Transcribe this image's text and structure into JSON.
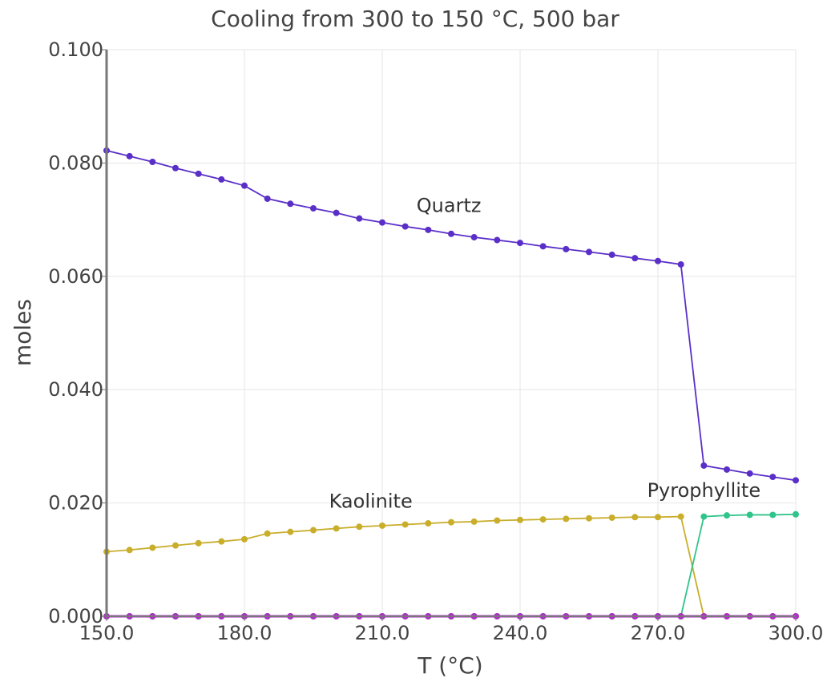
{
  "chart_data": {
    "type": "line",
    "title": "Cooling from 300 to 150 °C, 500 bar",
    "xlabel": "T (°C)",
    "ylabel": "moles",
    "xlim": [
      150,
      300
    ],
    "ylim": [
      0,
      0.1
    ],
    "xticks": [
      150,
      180,
      210,
      240,
      270,
      300
    ],
    "xtick_labels": [
      "150.0",
      "180.0",
      "210.0",
      "240.0",
      "270.0",
      "300.0"
    ],
    "yticks": [
      0,
      0.02,
      0.04,
      0.06,
      0.08,
      0.1
    ],
    "ytick_labels": [
      "0.000",
      "0.020",
      "0.040",
      "0.060",
      "0.080",
      "0.100"
    ],
    "grid": true,
    "x": [
      150,
      155,
      160,
      165,
      170,
      175,
      180,
      185,
      190,
      195,
      200,
      205,
      210,
      215,
      220,
      225,
      230,
      235,
      240,
      245,
      250,
      255,
      260,
      265,
      270,
      275,
      280,
      285,
      290,
      295,
      300
    ],
    "series": [
      {
        "color": "#5a2fc8",
        "values": [
          0.0822,
          0.0812,
          0.0802,
          0.0791,
          0.0781,
          0.0771,
          0.076,
          0.0737,
          0.0728,
          0.072,
          0.0712,
          0.0702,
          0.0695,
          0.0688,
          0.0682,
          0.0675,
          0.0669,
          0.0664,
          0.0659,
          0.0653,
          0.0648,
          0.0643,
          0.0638,
          0.0632,
          0.0627,
          0.0621,
          0.0266,
          0.0259,
          0.0252,
          0.0246,
          0.024
        ]
      },
      {
        "color": "#c9ae2c",
        "values": [
          0.0114,
          0.0117,
          0.0121,
          0.0125,
          0.0129,
          0.0132,
          0.0136,
          0.0146,
          0.0149,
          0.0152,
          0.0155,
          0.0158,
          0.016,
          0.0162,
          0.0164,
          0.0166,
          0.0167,
          0.0169,
          0.017,
          0.0171,
          0.0172,
          0.0173,
          0.0174,
          0.0175,
          0.0175,
          0.0176,
          0.0,
          0.0,
          0.0,
          0.0,
          0.0
        ]
      },
      {
        "color": "#2fc48a",
        "values": [
          0,
          0,
          0,
          0,
          0,
          0,
          0,
          0,
          0,
          0,
          0,
          0,
          0,
          0,
          0,
          0,
          0,
          0,
          0,
          0,
          0,
          0,
          0,
          0,
          0,
          0,
          0.0176,
          0.0178,
          0.0179,
          0.0179,
          0.018
        ]
      },
      {
        "color": "#b02fc8",
        "values": [
          0,
          0,
          0,
          0,
          0,
          0,
          0,
          0,
          0,
          0,
          0,
          0,
          0,
          0,
          0,
          0,
          0,
          0,
          0,
          0,
          0,
          0,
          0,
          0,
          0,
          0,
          0,
          0,
          0,
          0,
          0
        ]
      }
    ],
    "annotations": [
      {
        "text": "Quartz",
        "x": 224.5,
        "y": 0.0725
      },
      {
        "text": "Kaolinite",
        "x": 207.5,
        "y": 0.0203
      },
      {
        "text": "Pyrophyllite",
        "x": 280.0,
        "y": 0.0222
      }
    ]
  }
}
